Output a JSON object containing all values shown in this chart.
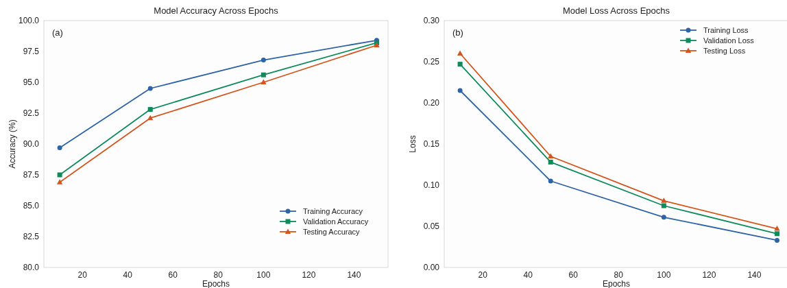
{
  "chart_data": [
    {
      "type": "line",
      "title": "Model Accuracy Across Epochs",
      "xlabel": "Epochs",
      "ylabel": "Accuracy (%)",
      "annotations": [
        "(a)"
      ],
      "x": [
        10,
        50,
        100,
        150
      ],
      "xlim": [
        3,
        155
      ],
      "xticks": [
        20,
        40,
        60,
        80,
        100,
        120,
        140
      ],
      "ylim": [
        80,
        100
      ],
      "yticks": [
        {
          "value": 80,
          "label": "80.0"
        },
        {
          "value": 82.5,
          "label": "82.5"
        },
        {
          "value": 85,
          "label": "85.0"
        },
        {
          "value": 87.5,
          "label": "87.5"
        },
        {
          "value": 90,
          "label": "90.0"
        },
        {
          "value": 92.5,
          "label": "92.5"
        },
        {
          "value": 95,
          "label": "95.0"
        },
        {
          "value": 97.5,
          "label": "97.5"
        },
        {
          "value": 100,
          "label": "100.0"
        }
      ],
      "legend": "bottom right",
      "grid": false,
      "line_style": "solid",
      "series": [
        {
          "name": "Training Accuracy",
          "color": "#2e63a6",
          "marker": "circle",
          "values": [
            89.7,
            94.5,
            96.8,
            98.4
          ]
        },
        {
          "name": "Validation Accuracy",
          "color": "#0f8a5a",
          "marker": "square",
          "values": [
            87.5,
            92.8,
            95.6,
            98.2
          ]
        },
        {
          "name": "Testing Accuracy",
          "color": "#d4541e",
          "marker": "triangle",
          "values": [
            86.9,
            92.1,
            95.0,
            98.0
          ]
        }
      ]
    },
    {
      "type": "line",
      "title": "Model Loss Across Epochs",
      "xlabel": "Epochs",
      "ylabel": "Loss",
      "annotations": [
        "(b)"
      ],
      "x": [
        10,
        50,
        100,
        150
      ],
      "xlim": [
        3,
        155
      ],
      "xticks": [
        20,
        40,
        60,
        80,
        100,
        120,
        140
      ],
      "ylim": [
        0,
        0.3
      ],
      "yticks": [
        {
          "value": 0,
          "label": "0.00"
        },
        {
          "value": 0.05,
          "label": "0.05"
        },
        {
          "value": 0.1,
          "label": "0.10"
        },
        {
          "value": 0.15,
          "label": "0.15"
        },
        {
          "value": 0.2,
          "label": "0.20"
        },
        {
          "value": 0.25,
          "label": "0.25"
        },
        {
          "value": 0.3,
          "label": "0.30"
        }
      ],
      "legend": "top right",
      "grid": false,
      "line_style": "solid",
      "series": [
        {
          "name": "Training Loss",
          "color": "#2e63a6",
          "marker": "circle",
          "values": [
            0.215,
            0.105,
            0.061,
            0.033
          ]
        },
        {
          "name": "Validation Loss",
          "color": "#0f8a5a",
          "marker": "square",
          "values": [
            0.247,
            0.128,
            0.075,
            0.041
          ]
        },
        {
          "name": "Testing Loss",
          "color": "#d4541e",
          "marker": "triangle",
          "values": [
            0.26,
            0.135,
            0.081,
            0.047
          ]
        }
      ]
    }
  ]
}
